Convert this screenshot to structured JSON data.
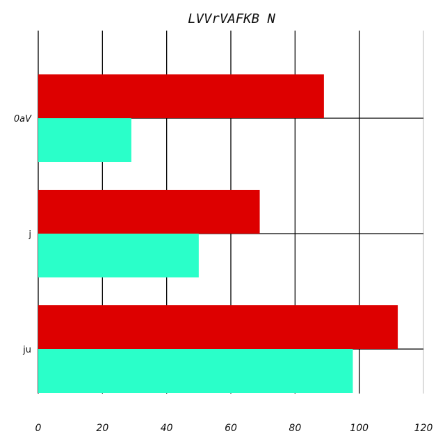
{
  "chart_data": {
    "type": "bar",
    "orientation": "horizontal",
    "title": "LVVrVAFKB N",
    "xlabel": "",
    "ylabel": "",
    "categories": [
      "0aV",
      "j",
      "ju"
    ],
    "series": [
      {
        "values": [
          89,
          69,
          112
        ],
        "color": "#dd0000"
      },
      {
        "values": [
          29,
          50,
          98
        ],
        "color": "#2affc9"
      }
    ],
    "xlim": [
      0,
      120
    ],
    "xticks": [
      0,
      20,
      40,
      60,
      80,
      100,
      120
    ],
    "grid": true,
    "legend": "none"
  }
}
